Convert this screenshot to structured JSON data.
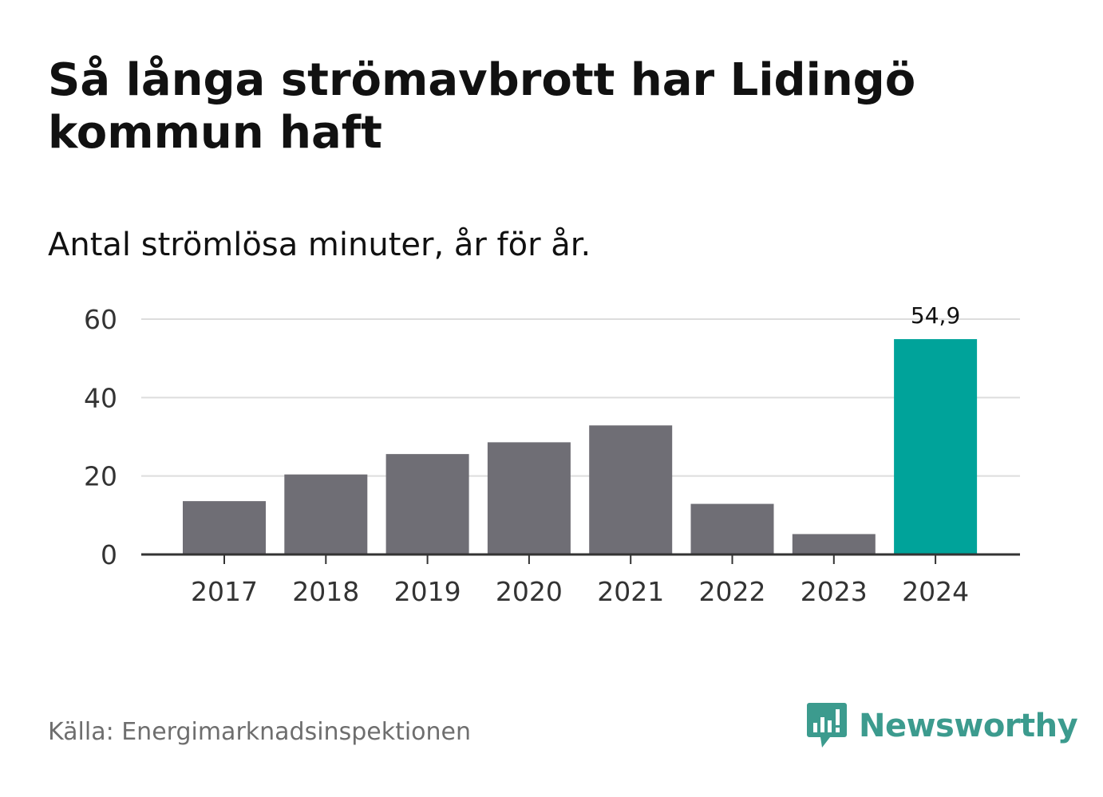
{
  "chart_data": {
    "type": "bar",
    "title": "Så långa strömavbrott har Lidingö kommun haft",
    "subtitle": "Antal strömlösa minuter, år för år.",
    "categories": [
      "2017",
      "2018",
      "2019",
      "2020",
      "2021",
      "2022",
      "2023",
      "2024"
    ],
    "values": [
      13.6,
      20.4,
      25.6,
      28.6,
      32.9,
      12.9,
      5.2,
      54.9
    ],
    "highlight_index": 7,
    "data_labels": [
      {
        "index": 7,
        "text": "54,9"
      }
    ],
    "yticks": [
      0,
      20,
      40,
      60
    ],
    "ylim": [
      0,
      60
    ],
    "xlabel": "",
    "ylabel": "",
    "grid": true,
    "colors": {
      "default": "#6f6e75",
      "highlight": "#00a39a",
      "grid": "#dddddd",
      "axis": "#333333"
    }
  },
  "footer": {
    "source": "Källa: Energimarknadsinspektionen",
    "brand": "Newsworthy",
    "brand_color": "#3c9b8e",
    "brand_icon": "chart-speech-bubble-icon"
  }
}
